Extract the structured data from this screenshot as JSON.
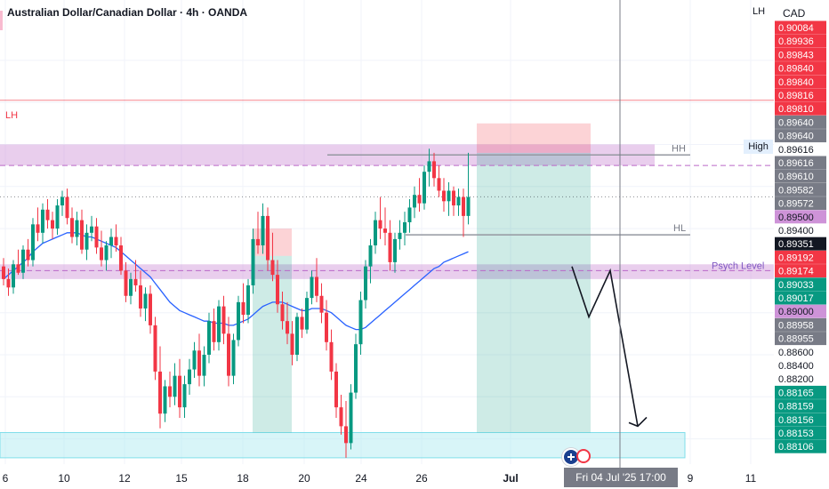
{
  "header": {
    "title": "Australian Dollar/Canadian Dollar · 4h · OANDA",
    "corner_label": "LH",
    "currency": "CAD"
  },
  "annotations": {
    "lh_left": "LH",
    "hh": "HH",
    "hl": "HL",
    "psych_level": "Psych Level",
    "high": "High"
  },
  "x_axis": {
    "ticks": [
      "6",
      "10",
      "12",
      "15",
      "18",
      "20",
      "24",
      "26",
      "Jul",
      "9",
      "11"
    ],
    "bold_tick": "Jul",
    "cursor_time": "Fri 04 Jul '25   17:00"
  },
  "price_scale": {
    "labels": [
      {
        "text": "0.90084",
        "kind": "red"
      },
      {
        "text": "0.89936",
        "kind": "red"
      },
      {
        "text": "0.89843",
        "kind": "red"
      },
      {
        "text": "0.89840",
        "kind": "red"
      },
      {
        "text": "0.89840",
        "kind": "red"
      },
      {
        "text": "0.89816",
        "kind": "red"
      },
      {
        "text": "0.89810",
        "kind": "red"
      },
      {
        "text": "0.89640",
        "kind": "gray"
      },
      {
        "text": "0.89640",
        "kind": "gray"
      },
      {
        "text": "0.89616",
        "kind": "high"
      },
      {
        "text": "0.89616",
        "kind": "gray"
      },
      {
        "text": "0.89610",
        "kind": "gray"
      },
      {
        "text": "0.89582",
        "kind": "gray"
      },
      {
        "text": "0.89572",
        "kind": "gray"
      },
      {
        "text": "0.89500",
        "kind": "purple"
      },
      {
        "text": "0.89400",
        "kind": "plain"
      },
      {
        "text": "0.89351",
        "kind": "dark"
      },
      {
        "text": "0.89192",
        "kind": "red"
      },
      {
        "text": "0.89174",
        "kind": "red"
      },
      {
        "text": "0.89033",
        "kind": "teal"
      },
      {
        "text": "0.89017",
        "kind": "teal"
      },
      {
        "text": "0.89000",
        "kind": "purple"
      },
      {
        "text": "0.88958",
        "kind": "gray"
      },
      {
        "text": "0.88955",
        "kind": "gray"
      },
      {
        "text": "0.88600",
        "kind": "plain"
      },
      {
        "text": "0.88400",
        "kind": "plain"
      },
      {
        "text": "0.88200",
        "kind": "plain"
      },
      {
        "text": "0.88165",
        "kind": "green"
      },
      {
        "text": "0.88159",
        "kind": "green"
      },
      {
        "text": "0.88156",
        "kind": "green"
      },
      {
        "text": "0.88153",
        "kind": "green"
      },
      {
        "text": "0.88106",
        "kind": "green"
      }
    ]
  },
  "colors": {
    "up": "#089981",
    "down": "#f23645",
    "ma": "#2962ff",
    "purple_zone": "#ce93d8",
    "cyan_zone": "#b2ebf2",
    "gray_label": "#787b86",
    "purple_label": "#ce93d8",
    "teal_label": "#089981",
    "green_label": "#089981",
    "red_label": "#f23645"
  },
  "chart_data": {
    "type": "candlestick",
    "symbol": "AUDCAD",
    "timeframe": "4h",
    "y_range": [
      0.8808,
      0.9016
    ],
    "last_price": 0.89351,
    "levels": {
      "lh": 0.8981,
      "hh": 0.8955,
      "hl": 0.8917,
      "psych_level": 0.89,
      "high": 0.89616
    },
    "zones": {
      "supply": [
        0.895,
        0.896
      ],
      "psych": [
        0.8896,
        0.8903
      ],
      "demand": [
        0.8811,
        0.8823
      ]
    },
    "short_position": {
      "entry": 0.8956,
      "stop": 0.897,
      "target": 0.8823
    },
    "candles": [
      [
        0.8902,
        0.8906,
        0.8893,
        0.8896
      ],
      [
        0.8896,
        0.8901,
        0.8888,
        0.8892
      ],
      [
        0.8892,
        0.8905,
        0.8889,
        0.8903
      ],
      [
        0.8903,
        0.891,
        0.8898,
        0.8899
      ],
      [
        0.8899,
        0.8912,
        0.8896,
        0.891
      ],
      [
        0.891,
        0.8915,
        0.8902,
        0.8905
      ],
      [
        0.8905,
        0.8925,
        0.8902,
        0.8922
      ],
      [
        0.8922,
        0.893,
        0.8914,
        0.8918
      ],
      [
        0.8918,
        0.8932,
        0.8913,
        0.8929
      ],
      [
        0.8929,
        0.8934,
        0.892,
        0.8924
      ],
      [
        0.8924,
        0.8928,
        0.8915,
        0.892
      ],
      [
        0.892,
        0.8934,
        0.8917,
        0.8931
      ],
      [
        0.8931,
        0.8938,
        0.8926,
        0.8935
      ],
      [
        0.8935,
        0.8939,
        0.8922,
        0.8925
      ],
      [
        0.8925,
        0.893,
        0.8913,
        0.8916
      ],
      [
        0.8916,
        0.8928,
        0.8912,
        0.8924
      ],
      [
        0.8924,
        0.8929,
        0.8908,
        0.891
      ],
      [
        0.891,
        0.8922,
        0.8905,
        0.8918
      ],
      [
        0.8918,
        0.8926,
        0.8914,
        0.8921
      ],
      [
        0.8921,
        0.8925,
        0.8908,
        0.8911
      ],
      [
        0.8911,
        0.8919,
        0.8902,
        0.8905
      ],
      [
        0.8905,
        0.8914,
        0.89,
        0.8912
      ],
      [
        0.8912,
        0.892,
        0.8906,
        0.8916
      ],
      [
        0.8916,
        0.8922,
        0.8909,
        0.8912
      ],
      [
        0.8912,
        0.8916,
        0.8898,
        0.89
      ],
      [
        0.89,
        0.8904,
        0.8885,
        0.8888
      ],
      [
        0.8888,
        0.8899,
        0.8884,
        0.8896
      ],
      [
        0.8896,
        0.8905,
        0.889,
        0.8893
      ],
      [
        0.8893,
        0.89,
        0.8878,
        0.8882
      ],
      [
        0.8882,
        0.8892,
        0.8876,
        0.8889
      ],
      [
        0.8889,
        0.8893,
        0.887,
        0.8874
      ],
      [
        0.8874,
        0.8878,
        0.8848,
        0.8852
      ],
      [
        0.8852,
        0.8864,
        0.8825,
        0.8832
      ],
      [
        0.8832,
        0.8848,
        0.8828,
        0.8845
      ],
      [
        0.8845,
        0.8852,
        0.8835,
        0.884
      ],
      [
        0.884,
        0.8856,
        0.8836,
        0.885
      ],
      [
        0.885,
        0.8858,
        0.883,
        0.8835
      ],
      [
        0.8835,
        0.885,
        0.883,
        0.8846
      ],
      [
        0.8846,
        0.8858,
        0.8841,
        0.8853
      ],
      [
        0.8853,
        0.8866,
        0.8849,
        0.8862
      ],
      [
        0.8862,
        0.887,
        0.8845,
        0.885
      ],
      [
        0.885,
        0.8864,
        0.8845,
        0.886
      ],
      [
        0.886,
        0.888,
        0.8856,
        0.8876
      ],
      [
        0.8876,
        0.8882,
        0.8862,
        0.8866
      ],
      [
        0.8866,
        0.8886,
        0.8862,
        0.8883
      ],
      [
        0.8883,
        0.8888,
        0.8865,
        0.887
      ],
      [
        0.887,
        0.8878,
        0.8845,
        0.885
      ],
      [
        0.885,
        0.887,
        0.8846,
        0.8867
      ],
      [
        0.8867,
        0.8888,
        0.8864,
        0.8885
      ],
      [
        0.8885,
        0.8894,
        0.8875,
        0.8879
      ],
      [
        0.8879,
        0.8896,
        0.8875,
        0.8893
      ],
      [
        0.8893,
        0.892,
        0.8889,
        0.8915
      ],
      [
        0.8915,
        0.8928,
        0.8908,
        0.8912
      ],
      [
        0.8912,
        0.8932,
        0.8908,
        0.8926
      ],
      [
        0.8926,
        0.893,
        0.89,
        0.8905
      ],
      [
        0.8905,
        0.8918,
        0.8895,
        0.8898
      ],
      [
        0.8898,
        0.8905,
        0.888,
        0.8884
      ],
      [
        0.8884,
        0.889,
        0.8872,
        0.8876
      ],
      [
        0.8876,
        0.8885,
        0.8865,
        0.887
      ],
      [
        0.887,
        0.8876,
        0.8855,
        0.886
      ],
      [
        0.886,
        0.888,
        0.8857,
        0.8878
      ],
      [
        0.8878,
        0.8882,
        0.8868,
        0.8872
      ],
      [
        0.8872,
        0.889,
        0.887,
        0.8887
      ],
      [
        0.8887,
        0.89,
        0.8884,
        0.8897
      ],
      [
        0.8897,
        0.8906,
        0.8885,
        0.8888
      ],
      [
        0.8888,
        0.8894,
        0.8875,
        0.888
      ],
      [
        0.888,
        0.8886,
        0.8862,
        0.8866
      ],
      [
        0.8866,
        0.8872,
        0.8848,
        0.8852
      ],
      [
        0.8852,
        0.8856,
        0.883,
        0.8835
      ],
      [
        0.8835,
        0.8841,
        0.8822,
        0.8826
      ],
      [
        0.8826,
        0.8838,
        0.8811,
        0.8818
      ],
      [
        0.8818,
        0.8846,
        0.8815,
        0.8842
      ],
      [
        0.8842,
        0.887,
        0.8839,
        0.8865
      ],
      [
        0.8865,
        0.889,
        0.886,
        0.8886
      ],
      [
        0.8886,
        0.8905,
        0.8882,
        0.8902
      ],
      [
        0.8902,
        0.8915,
        0.8894,
        0.8912
      ],
      [
        0.8912,
        0.8928,
        0.8908,
        0.8924
      ],
      [
        0.8924,
        0.8935,
        0.8915,
        0.892
      ],
      [
        0.892,
        0.893,
        0.8912,
        0.8918
      ],
      [
        0.8918,
        0.8924,
        0.89,
        0.8904
      ],
      [
        0.8904,
        0.8918,
        0.8899,
        0.8915
      ],
      [
        0.8915,
        0.8924,
        0.891,
        0.8918
      ],
      [
        0.8918,
        0.8928,
        0.8912,
        0.8923
      ],
      [
        0.8923,
        0.8934,
        0.8918,
        0.893
      ],
      [
        0.893,
        0.894,
        0.8925,
        0.8936
      ],
      [
        0.8936,
        0.8944,
        0.8928,
        0.8932
      ],
      [
        0.8932,
        0.895,
        0.8929,
        0.8947
      ],
      [
        0.8947,
        0.8958,
        0.894,
        0.8952
      ],
      [
        0.8952,
        0.8956,
        0.894,
        0.8944
      ],
      [
        0.8944,
        0.895,
        0.8935,
        0.8938
      ],
      [
        0.8938,
        0.8944,
        0.8928,
        0.8933
      ],
      [
        0.8933,
        0.8942,
        0.8926,
        0.8938
      ],
      [
        0.8938,
        0.894,
        0.8926,
        0.8931
      ],
      [
        0.8931,
        0.8939,
        0.8926,
        0.8935
      ],
      [
        0.8935,
        0.8939,
        0.8916,
        0.8926
      ],
      [
        0.8926,
        0.8956,
        0.8922,
        0.8935
      ]
    ],
    "moving_average": [
      0.8896,
      0.8898,
      0.89,
      0.8902,
      0.8904,
      0.8906,
      0.8909,
      0.8911,
      0.8913,
      0.8914,
      0.8915,
      0.8916,
      0.8917,
      0.8918,
      0.8918,
      0.8918,
      0.8917,
      0.8916,
      0.8916,
      0.8915,
      0.8914,
      0.8913,
      0.8912,
      0.8911,
      0.8909,
      0.8907,
      0.8905,
      0.8903,
      0.8901,
      0.8899,
      0.8897,
      0.8894,
      0.8891,
      0.8888,
      0.8885,
      0.8883,
      0.8881,
      0.888,
      0.8879,
      0.8878,
      0.8877,
      0.8876,
      0.8876,
      0.8875,
      0.8875,
      0.8875,
      0.8874,
      0.8874,
      0.8875,
      0.8876,
      0.8877,
      0.8879,
      0.8881,
      0.8883,
      0.8884,
      0.8885,
      0.8885,
      0.8885,
      0.8884,
      0.8883,
      0.8882,
      0.8881,
      0.8881,
      0.8882,
      0.8882,
      0.8882,
      0.8881,
      0.888,
      0.8878,
      0.8876,
      0.8874,
      0.8873,
      0.8872,
      0.8872,
      0.8873,
      0.8875,
      0.8877,
      0.8879,
      0.8881,
      0.8883,
      0.8885,
      0.8887,
      0.8889,
      0.8891,
      0.8893,
      0.8895,
      0.8897,
      0.8899,
      0.8901,
      0.8902,
      0.8904,
      0.8905,
      0.8906,
      0.8907,
      0.8908,
      0.8909
    ],
    "projection_path": [
      0.8902,
      0.8878,
      0.89,
      0.8826
    ]
  }
}
